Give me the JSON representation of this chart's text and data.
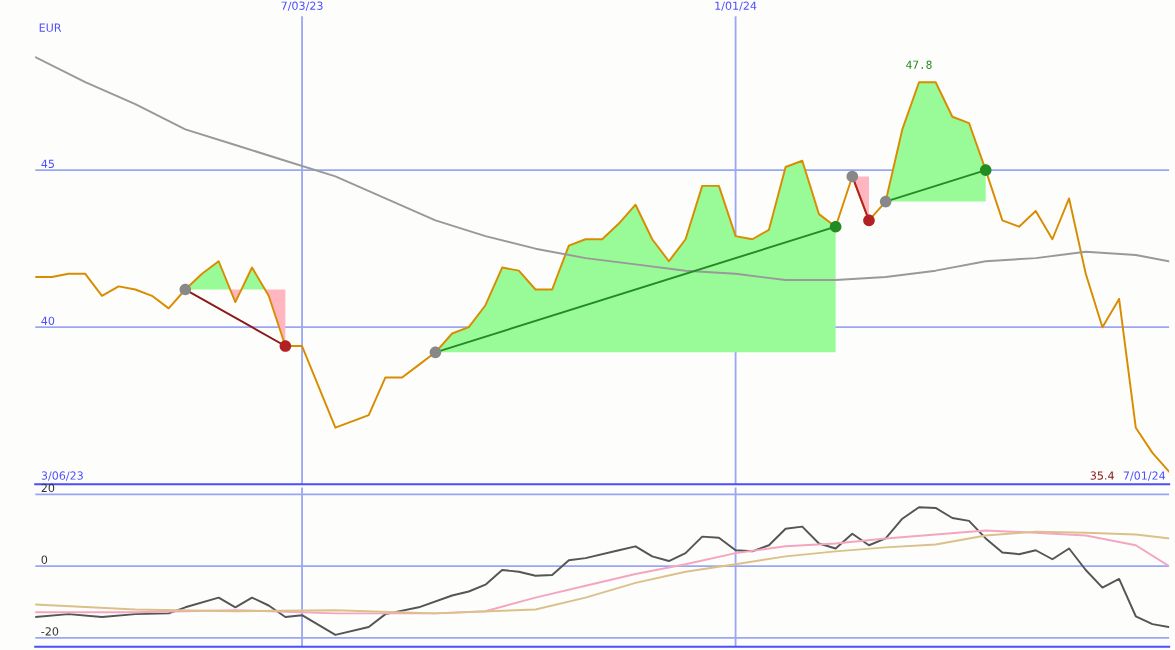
{
  "chart_data": [
    {
      "type": "line",
      "ylabel": "EUR",
      "x": [
        "2023-03-13",
        "2023-03-20",
        "2023-03-27",
        "2023-04-03",
        "2023-04-10",
        "2023-04-17",
        "2023-04-24",
        "2023-05-01",
        "2023-05-08",
        "2023-05-15",
        "2023-05-22",
        "2023-05-29",
        "2023-06-05",
        "2023-06-12",
        "2023-06-19",
        "2023-06-26",
        "2023-07-03",
        "2023-07-10",
        "2023-07-17",
        "2023-07-24",
        "2023-07-31",
        "2023-08-07",
        "2023-08-14",
        "2023-08-21",
        "2023-08-28",
        "2023-09-04",
        "2023-09-11",
        "2023-09-18",
        "2023-09-25",
        "2023-10-02",
        "2023-10-09",
        "2023-10-16",
        "2023-10-23",
        "2023-10-30",
        "2023-11-06",
        "2023-11-13",
        "2023-11-20",
        "2023-11-27",
        "2023-12-04",
        "2023-12-11",
        "2023-12-18",
        "2023-12-25",
        "2024-01-01",
        "2024-01-08",
        "2024-01-15",
        "2024-01-22",
        "2024-01-29",
        "2024-02-05",
        "2024-02-12",
        "2024-02-19",
        "2024-02-26",
        "2024-03-04",
        "2024-03-11",
        "2024-03-18",
        "2024-03-25",
        "2024-04-01",
        "2024-04-08",
        "2024-04-15",
        "2024-04-22",
        "2024-04-29",
        "2024-05-06",
        "2024-05-13",
        "2024-05-20",
        "2024-05-27",
        "2024-06-03",
        "2024-06-10",
        "2024-06-17",
        "2024-06-24",
        "2024-07-01"
      ],
      "xlim": [
        "2023-03-13",
        "2024-07-01"
      ],
      "xticks": [
        {
          "value": "2023-07-03",
          "label": "7/03/23"
        },
        {
          "value": "2024-01-01",
          "label": "1/01/24"
        }
      ],
      "ylim": [
        35.0,
        49.9
      ],
      "yticks": [
        40,
        45
      ],
      "grid": true,
      "series": [
        {
          "color": "#d98c00",
          "values": [
            41.6,
            41.6,
            41.7,
            41.7,
            41.0,
            41.3,
            41.2,
            41.0,
            40.6,
            41.2,
            41.7,
            42.1,
            40.8,
            41.9,
            41.0,
            39.4,
            39.4,
            38.1,
            36.8,
            37.0,
            37.2,
            38.4,
            38.4,
            38.8,
            39.2,
            39.8,
            40.0,
            40.7,
            41.9,
            41.8,
            41.2,
            41.2,
            42.6,
            42.8,
            42.8,
            43.3,
            43.9,
            42.8,
            42.1,
            42.8,
            44.5,
            44.5,
            42.9,
            42.8,
            43.1,
            45.1,
            45.3,
            43.6,
            43.2,
            44.8,
            43.4,
            44.0,
            46.3,
            47.8,
            47.8,
            46.7,
            46.5,
            45.0,
            43.4,
            43.2,
            43.7,
            42.8,
            44.1,
            41.7,
            40.0,
            40.9,
            36.8,
            36.0,
            35.4
          ]
        },
        {
          "color": "#999999",
          "x": [
            "2023-03-13",
            "2023-04-03",
            "2023-04-24",
            "2023-05-15",
            "2023-06-05",
            "2023-06-26",
            "2023-07-17",
            "2023-08-07",
            "2023-08-28",
            "2023-09-18",
            "2023-10-09",
            "2023-10-30",
            "2023-11-20",
            "2023-12-11",
            "2024-01-01",
            "2024-01-22",
            "2024-02-12",
            "2024-03-04",
            "2024-03-25",
            "2024-04-15",
            "2024-05-06",
            "2024-05-27",
            "2024-06-17",
            "2024-07-01"
          ],
          "values": [
            48.6,
            47.8,
            47.1,
            46.3,
            45.8,
            45.3,
            44.8,
            44.1,
            43.4,
            42.9,
            42.5,
            42.2,
            42.0,
            41.8,
            41.7,
            41.5,
            41.5,
            41.6,
            41.8,
            42.1,
            42.2,
            42.4,
            42.3,
            42.1
          ]
        },
        {
          "color": "#8b1a1a",
          "marker": "circle",
          "x": [
            "2023-05-15",
            "2023-06-26"
          ],
          "values": [
            41.2,
            39.4
          ],
          "colors": [
            "#888888",
            "#b22222"
          ]
        },
        {
          "color": "#228b22",
          "marker": "circle",
          "x": [
            "2023-08-28",
            "2024-02-12"
          ],
          "values": [
            39.2,
            43.2
          ],
          "colors": [
            "#888888",
            "#228b22"
          ]
        },
        {
          "color": "#b22222",
          "marker": "circle",
          "x": [
            "2024-02-19",
            "2024-02-26"
          ],
          "values": [
            44.8,
            43.4
          ],
          "colors": [
            "#888888",
            "#b22222"
          ]
        },
        {
          "color": "#228b22",
          "marker": "circle",
          "x": [
            "2024-03-04",
            "2024-04-15"
          ],
          "values": [
            44.0,
            45.0
          ],
          "colors": [
            "#888888",
            "#228b22"
          ]
        }
      ],
      "annotations": [
        "3/06/23",
        "35.4",
        "7/01/24",
        {
          "text": "47.8",
          "x": "2024-03-18",
          "y": 47.8
        }
      ]
    },
    {
      "type": "line",
      "tick_labels": "y",
      "grid": true,
      "xlim": [
        "2023-03-13",
        "2024-07-01"
      ],
      "xticks": [
        {
          "value": "2023-07-03",
          "label": null
        },
        {
          "value": "2024-01-01",
          "label": null
        }
      ],
      "ylim": [
        -22.5,
        21.9
      ],
      "yticks": [
        -20,
        0,
        20
      ],
      "series": [
        {
          "color": "#555555",
          "x": [
            "2023-03-13",
            "2023-03-27",
            "2023-04-10",
            "2023-04-24",
            "2023-05-08",
            "2023-05-15",
            "2023-05-29",
            "2023-06-05",
            "2023-06-12",
            "2023-06-19",
            "2023-06-26",
            "2023-07-03",
            "2023-07-17",
            "2023-07-31",
            "2023-08-07",
            "2023-08-21",
            "2023-09-04",
            "2023-09-11",
            "2023-09-18",
            "2023-09-25",
            "2023-10-02",
            "2023-10-09",
            "2023-10-16",
            "2023-10-23",
            "2023-10-30",
            "2023-11-13",
            "2023-11-20",
            "2023-11-27",
            "2023-12-04",
            "2023-12-11",
            "2023-12-18",
            "2023-12-25",
            "2024-01-01",
            "2024-01-08",
            "2024-01-15",
            "2024-01-22",
            "2024-01-29",
            "2024-02-05",
            "2024-02-12",
            "2024-02-19",
            "2024-02-26",
            "2024-03-04",
            "2024-03-11",
            "2024-03-18",
            "2024-03-25",
            "2024-04-01",
            "2024-04-08",
            "2024-04-15",
            "2024-04-22",
            "2024-04-29",
            "2024-05-06",
            "2024-05-13",
            "2024-05-20",
            "2024-05-27",
            "2024-06-03",
            "2024-06-10",
            "2024-06-17",
            "2024-06-24",
            "2024-07-01"
          ],
          "values": [
            -14.2,
            -13.4,
            -14.2,
            -13.4,
            -13.2,
            -11.5,
            -8.8,
            -11.5,
            -8.8,
            -11.0,
            -14.2,
            -13.7,
            -19.2,
            -17.0,
            -13.4,
            -11.5,
            -8.2,
            -7.1,
            -5.2,
            -1.1,
            -1.6,
            -2.7,
            -2.5,
            1.6,
            2.2,
            4.4,
            5.5,
            2.7,
            1.4,
            3.6,
            8.2,
            7.9,
            4.4,
            4.1,
            5.8,
            10.4,
            11.0,
            6.3,
            4.9,
            9.0,
            5.8,
            7.7,
            13.2,
            16.4,
            16.2,
            13.4,
            12.6,
            7.7,
            3.8,
            3.3,
            4.4,
            1.9,
            4.9,
            -1.1,
            -6.0,
            -3.6,
            -14.0,
            -16.2,
            -17.0
          ]
        },
        {
          "color": "#f4a6c0",
          "x": [
            "2023-03-13",
            "2023-04-24",
            "2023-06-05",
            "2023-07-17",
            "2023-08-28",
            "2023-09-18",
            "2023-10-09",
            "2023-10-30",
            "2023-11-20",
            "2023-12-11",
            "2024-01-01",
            "2024-01-22",
            "2024-02-12",
            "2024-03-04",
            "2024-03-25",
            "2024-04-15",
            "2024-05-06",
            "2024-05-27",
            "2024-06-17",
            "2024-07-01"
          ],
          "values": [
            -12.9,
            -12.9,
            -12.3,
            -13.2,
            -13.2,
            -12.6,
            -8.8,
            -5.5,
            -2.2,
            0.5,
            3.6,
            5.5,
            6.3,
            7.7,
            8.8,
            9.9,
            9.3,
            8.5,
            5.8,
            0
          ]
        },
        {
          "color": "#dcc08a",
          "x": [
            "2023-03-13",
            "2023-04-24",
            "2023-06-05",
            "2023-07-17",
            "2023-08-28",
            "2023-10-09",
            "2023-10-30",
            "2023-11-20",
            "2023-12-11",
            "2024-01-01",
            "2024-01-22",
            "2024-02-12",
            "2024-03-04",
            "2024-03-25",
            "2024-04-15",
            "2024-05-06",
            "2024-05-27",
            "2024-06-17",
            "2024-07-01"
          ],
          "values": [
            -10.7,
            -12.1,
            -12.6,
            -12.3,
            -13.2,
            -12.1,
            -8.8,
            -4.7,
            -1.6,
            0.5,
            2.7,
            4.1,
            5.2,
            6.0,
            8.5,
            9.6,
            9.3,
            8.8,
            7.7
          ]
        }
      ]
    }
  ]
}
